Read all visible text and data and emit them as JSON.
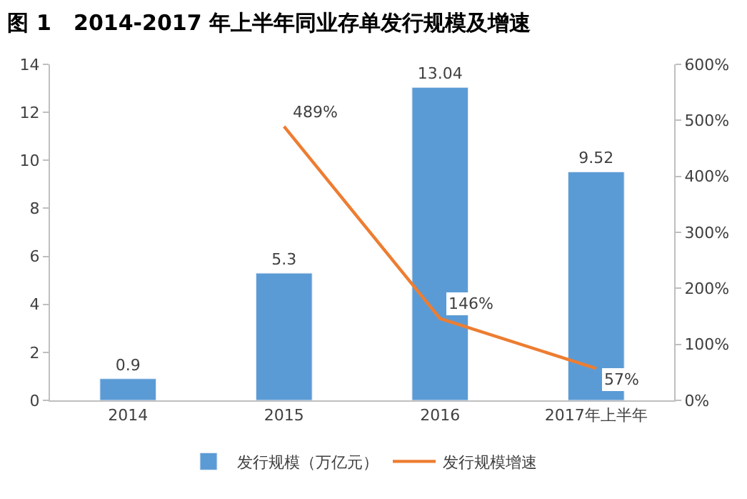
{
  "chart_data": {
    "type": "bar",
    "title": "图 1   2014-2017 年上半年同业存单发行规模及增速",
    "categories": [
      "2014",
      "2015",
      "2016",
      "2017年上半年"
    ],
    "series": [
      {
        "name": "发行规模（万亿元）",
        "color": "#5b9bd5",
        "values": [
          0.9,
          5.3,
          13.04,
          9.52
        ],
        "value_labels": [
          "0.9",
          "5.3",
          "13.04",
          "9.52"
        ]
      },
      {
        "name": "发行规模增速",
        "type": "line",
        "axis": "y2",
        "color": "#ed7d31",
        "values": [
          null,
          489,
          146,
          57
        ],
        "value_labels": [
          null,
          "489%",
          "146%",
          "57%"
        ],
        "marker": "none"
      }
    ],
    "ylim": [
      0,
      14
    ],
    "yticks": [
      0,
      2,
      4,
      6,
      8,
      10,
      12,
      14
    ],
    "y2lim": [
      0,
      600
    ],
    "y2ticks": [
      {
        "value": 0,
        "label": "0%"
      },
      {
        "value": 100,
        "label": "100%"
      },
      {
        "value": 200,
        "label": "200%"
      },
      {
        "value": 300,
        "label": "300%"
      },
      {
        "value": 400,
        "label": "400%"
      },
      {
        "value": 500,
        "label": "500%"
      },
      {
        "value": 600,
        "label": "600%"
      }
    ],
    "legend": "bottom"
  }
}
